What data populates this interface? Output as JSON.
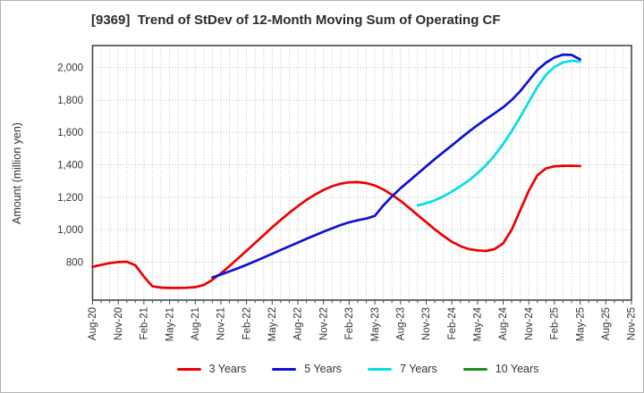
{
  "chart_data": {
    "type": "line",
    "title": "[9369]  Trend of StDev of 12-Month Moving Sum of Operating CF",
    "ylabel": "Amount (million yen)",
    "xlabel": "",
    "grid": true,
    "legend_position": "bottom-center",
    "x_unit": "month",
    "x_range_months": [
      0,
      63
    ],
    "x_tick_positions": [
      0,
      3,
      6,
      9,
      12,
      15,
      18,
      21,
      24,
      27,
      30,
      33,
      36,
      39,
      42,
      45,
      48,
      51,
      54,
      57,
      60,
      63
    ],
    "x_tick_labels": [
      "Aug-20",
      "Nov-20",
      "Feb-21",
      "May-21",
      "Aug-21",
      "Nov-21",
      "Feb-22",
      "May-22",
      "Aug-22",
      "Nov-22",
      "Feb-23",
      "May-23",
      "Aug-23",
      "Nov-23",
      "Feb-24",
      "May-24",
      "Aug-24",
      "Nov-24",
      "Feb-25",
      "May-25",
      "Aug-25",
      "Nov-25"
    ],
    "ylim": [
      565,
      2136
    ],
    "y_ticks": {
      "values": [
        800,
        1000,
        1200,
        1400,
        1600,
        1800,
        2000
      ],
      "labels": [
        "800",
        "1,000",
        "1,200",
        "1,400",
        "1,600",
        "1,800",
        "2,000"
      ]
    },
    "series": [
      {
        "name": "3 Years",
        "color": "#ee0000",
        "start_label": "Aug-20",
        "start_month_index": 0,
        "values": [
          770,
          782,
          793,
          800,
          802,
          780,
          710,
          650,
          642,
          640,
          640,
          641,
          645,
          658,
          690,
          730,
          775,
          822,
          870,
          918,
          966,
          1014,
          1060,
          1104,
          1145,
          1183,
          1216,
          1245,
          1268,
          1283,
          1292,
          1293,
          1287,
          1272,
          1248,
          1215,
          1178,
          1135,
          1090,
          1046,
          1002,
          962,
          925,
          898,
          880,
          872,
          868,
          880,
          915,
          1000,
          1120,
          1240,
          1335,
          1378,
          1391,
          1394,
          1394,
          1393
        ]
      },
      {
        "name": "5 Years",
        "color": "#1010d8",
        "start_label": "Oct-21",
        "start_month_index": 14,
        "values": [
          705,
          723,
          742,
          762,
          783,
          805,
          828,
          851,
          874,
          897,
          920,
          943,
          965,
          987,
          1008,
          1028,
          1045,
          1058,
          1068,
          1085,
          1150,
          1205,
          1255,
          1300,
          1345,
          1390,
          1435,
          1478,
          1520,
          1562,
          1605,
          1645,
          1682,
          1718,
          1755,
          1800,
          1855,
          1920,
          1985,
          2030,
          2062,
          2080,
          2078,
          2050
        ]
      },
      {
        "name": "7 Years",
        "color": "#00dfe8",
        "start_label": "Oct-23",
        "start_month_index": 38,
        "values": [
          1150,
          1162,
          1180,
          1205,
          1235,
          1268,
          1305,
          1348,
          1398,
          1458,
          1528,
          1608,
          1695,
          1788,
          1880,
          1955,
          2005,
          2032,
          2042,
          2038
        ]
      },
      {
        "name": "10 Years",
        "color": "#1e8c1e",
        "start_label": "",
        "start_month_index": 0,
        "values": []
      }
    ]
  }
}
